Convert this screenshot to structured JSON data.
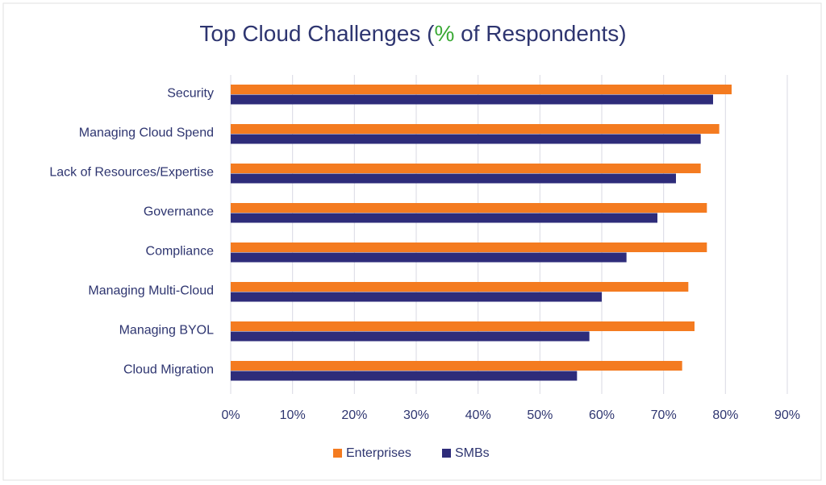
{
  "chart_data": {
    "type": "bar",
    "orientation": "horizontal",
    "title": [
      "Top Cloud Challenges (",
      "%",
      " of Respondents)"
    ],
    "categories": [
      "Security",
      "Managing Cloud Spend",
      "Lack of Resources/Expertise",
      "Governance",
      "Compliance",
      "Managing Multi-Cloud",
      "Managing BYOL",
      "Cloud Migration"
    ],
    "series": [
      {
        "name": "Enterprises",
        "color": "#f47b20",
        "values": [
          81,
          79,
          76,
          77,
          77,
          74,
          75,
          73
        ]
      },
      {
        "name": "SMBs",
        "color": "#2e2c7a",
        "values": [
          78,
          76,
          72,
          69,
          64,
          60,
          58,
          56
        ]
      }
    ],
    "xlim": [
      0,
      90
    ],
    "xticks": [
      {
        "value": 0,
        "label": "0%"
      },
      {
        "value": 10,
        "label": "10%"
      },
      {
        "value": 20,
        "label": "20%"
      },
      {
        "value": 30,
        "label": "30%"
      },
      {
        "value": 40,
        "label": "40%"
      },
      {
        "value": 50,
        "label": "50%"
      },
      {
        "value": 60,
        "label": "60%"
      },
      {
        "value": 70,
        "label": "70%"
      },
      {
        "value": 80,
        "label": "80%"
      },
      {
        "value": 90,
        "label": "90%"
      }
    ],
    "grid": true,
    "legend": "bottom"
  }
}
